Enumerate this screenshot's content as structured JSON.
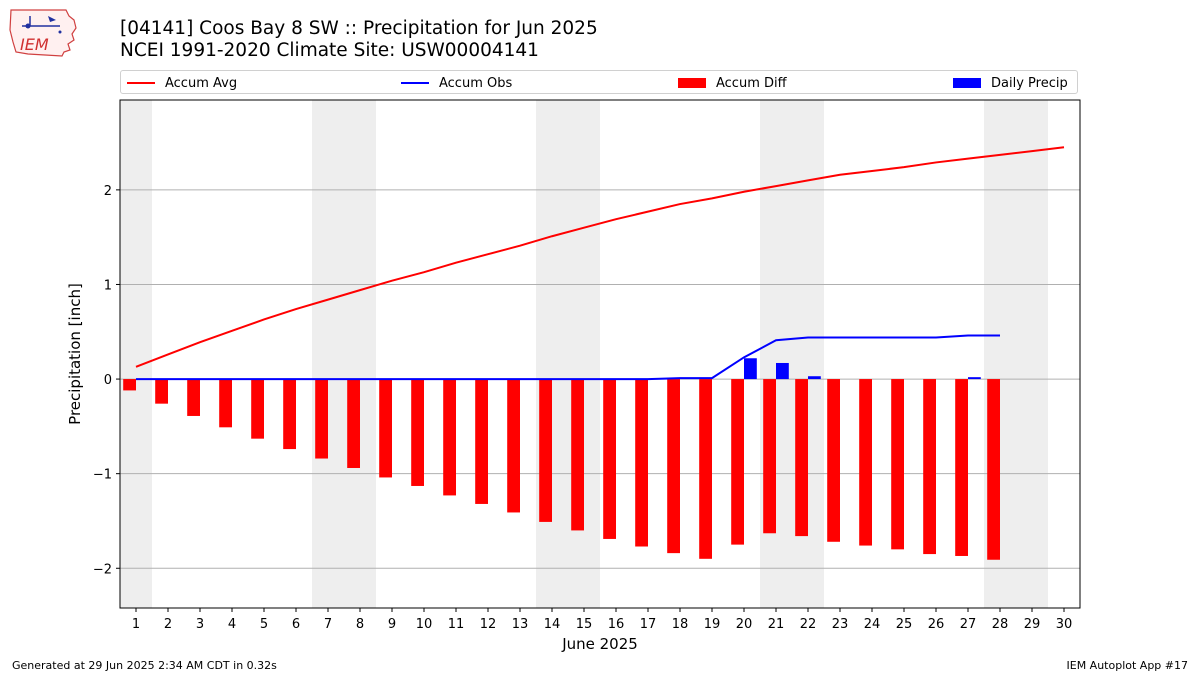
{
  "logo": {
    "text": "IEM"
  },
  "title_line1": "[04141] Coos Bay 8 SW :: Precipitation for Jun 2025",
  "title_line2": "NCEI 1991-2020 Climate Site: USW00004141",
  "legend": {
    "accum_avg": "Accum Avg",
    "accum_obs": "Accum Obs",
    "accum_diff": "Accum Diff",
    "daily_precip": "Daily Precip"
  },
  "footer": {
    "generated": "Generated at 29 Jun 2025 2:34 AM CDT in 0.32s",
    "app": "IEM Autoplot App #17"
  },
  "colors": {
    "accum_avg": "#ff0000",
    "accum_obs": "#0000ff",
    "accum_diff": "#ff0000",
    "daily_precip": "#0000ff",
    "weekend_shade": "#eeeeee",
    "grid": "#b0b0b0"
  },
  "chart_data": {
    "type": "bar",
    "xlabel": "June 2025",
    "ylabel": "Precipitation [inch]",
    "x": [
      1,
      2,
      3,
      4,
      5,
      6,
      7,
      8,
      9,
      10,
      11,
      12,
      13,
      14,
      15,
      16,
      17,
      18,
      19,
      20,
      21,
      22,
      23,
      24,
      25,
      26,
      27,
      28,
      29,
      30
    ],
    "xlim": [
      0.5,
      30.5
    ],
    "ylim": [
      -2.42,
      2.95
    ],
    "yticks": [
      -2,
      -1,
      0,
      1,
      2
    ],
    "ytick_labels": [
      "−2",
      "−1",
      "0",
      "1",
      "2"
    ],
    "grid": "y",
    "legend_position": "top",
    "weekend_days": [
      1,
      7,
      8,
      14,
      15,
      21,
      22,
      28,
      29
    ],
    "series": [
      {
        "name": "Accum Avg",
        "kind": "line",
        "x": [
          1,
          2,
          3,
          4,
          5,
          6,
          7,
          8,
          9,
          10,
          11,
          12,
          13,
          14,
          15,
          16,
          17,
          18,
          19,
          20,
          21,
          22,
          23,
          24,
          25,
          26,
          27,
          28,
          29,
          30
        ],
        "values": [
          0.13,
          0.26,
          0.39,
          0.51,
          0.63,
          0.74,
          0.84,
          0.94,
          1.04,
          1.13,
          1.23,
          1.32,
          1.41,
          1.51,
          1.6,
          1.69,
          1.77,
          1.85,
          1.91,
          1.98,
          2.04,
          2.1,
          2.16,
          2.2,
          2.24,
          2.29,
          2.33,
          2.37,
          2.41,
          2.45
        ]
      },
      {
        "name": "Accum Obs",
        "kind": "line",
        "x": [
          1,
          2,
          3,
          4,
          5,
          6,
          7,
          8,
          9,
          10,
          11,
          12,
          13,
          14,
          15,
          16,
          17,
          18,
          19,
          20,
          21,
          22,
          23,
          24,
          25,
          26,
          27,
          28
        ],
        "values": [
          0,
          0,
          0,
          0,
          0,
          0,
          0,
          0,
          0,
          0,
          0,
          0,
          0,
          0,
          0,
          0,
          0,
          0.01,
          0.01,
          0.23,
          0.41,
          0.44,
          0.44,
          0.44,
          0.44,
          0.44,
          0.46,
          0.46
        ]
      },
      {
        "name": "Accum Diff",
        "kind": "bar",
        "x": [
          1,
          2,
          3,
          4,
          5,
          6,
          7,
          8,
          9,
          10,
          11,
          12,
          13,
          14,
          15,
          16,
          17,
          18,
          19,
          20,
          21,
          22,
          23,
          24,
          25,
          26,
          27,
          28
        ],
        "values": [
          -0.12,
          -0.26,
          -0.39,
          -0.51,
          -0.63,
          -0.74,
          -0.84,
          -0.94,
          -1.04,
          -1.13,
          -1.23,
          -1.32,
          -1.41,
          -1.51,
          -1.6,
          -1.69,
          -1.77,
          -1.84,
          -1.9,
          -1.75,
          -1.63,
          -1.66,
          -1.72,
          -1.76,
          -1.8,
          -1.85,
          -1.87,
          -1.91
        ]
      },
      {
        "name": "Daily Precip",
        "kind": "bar",
        "x": [
          1,
          2,
          3,
          4,
          5,
          6,
          7,
          8,
          9,
          10,
          11,
          12,
          13,
          14,
          15,
          16,
          17,
          18,
          19,
          20,
          21,
          22,
          23,
          24,
          25,
          26,
          27,
          28
        ],
        "values": [
          0,
          0,
          0,
          0,
          0,
          0,
          0,
          0,
          0,
          0,
          0,
          0,
          0,
          0,
          0,
          0,
          0,
          0,
          0,
          0.22,
          0.17,
          0.03,
          0,
          0,
          0,
          0,
          0.02,
          0
        ]
      }
    ]
  }
}
